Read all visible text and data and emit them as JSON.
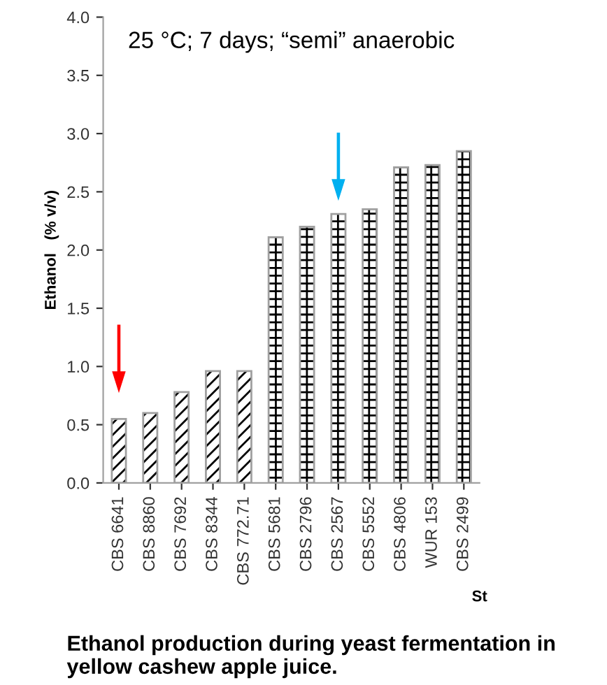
{
  "chart_data": {
    "type": "bar",
    "title": "Ethanol production during yeast fermentation in yellow cashew apple juice.",
    "xlabel": "St",
    "ylabel": "Ethanol   (% v/v)",
    "annotations": [
      "25 °C; 7 days; “semi” anaerobic"
    ],
    "categories": [
      "CBS 6641",
      "CBS 8860",
      "CBS 7692",
      "CBS 8344",
      "CBS 772.71",
      "CBS 5681",
      "CBS 2796",
      "CBS 2567",
      "CBS 5552",
      "CBS 4806",
      "WUR 153",
      "CBS 2499"
    ],
    "series": [
      {
        "color": "#000000",
        "values": [
          0.55,
          0.6,
          0.78,
          0.96,
          0.96,
          null,
          null,
          null,
          null,
          null,
          null,
          null
        ]
      },
      {
        "color": "#000000",
        "values": [
          null,
          null,
          null,
          null,
          null,
          2.11,
          2.2,
          2.31,
          2.35,
          2.71,
          2.73,
          2.85
        ]
      }
    ],
    "ylim": [
      0,
      4
    ],
    "yticks": [
      {
        "value": 0,
        "label": "0.0"
      },
      {
        "value": 0.5,
        "label": "0.5"
      },
      {
        "value": 1,
        "label": "1.0"
      },
      {
        "value": 1.5,
        "label": "1.5"
      },
      {
        "value": 2,
        "label": "2.0"
      },
      {
        "value": 2.5,
        "label": "2.5"
      },
      {
        "value": 3,
        "label": "3.0"
      },
      {
        "value": 3.5,
        "label": "3.5"
      },
      {
        "value": 4,
        "label": "4.0"
      }
    ],
    "grid": false,
    "legend": false
  }
}
